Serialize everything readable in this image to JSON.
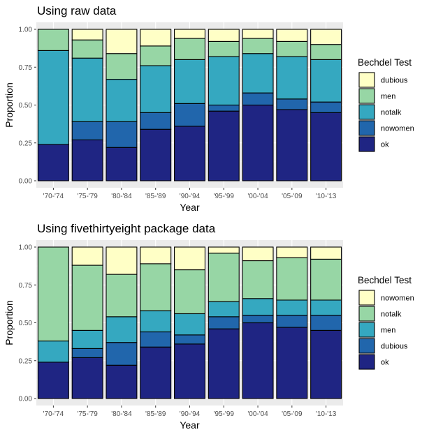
{
  "palette": {
    "panel_bg": "#ebebeb",
    "grid_major": "#ffffff",
    "grid_minor": "#f2f2f2",
    "bar_stroke": "#000000",
    "tick_text": "#4d4d4d",
    "text": "#000000"
  },
  "chart_data": [
    {
      "type": "bar",
      "stacked": true,
      "title": "Using raw data",
      "xlabel": "Year",
      "ylabel": "Proportion",
      "ylim": [
        0,
        1
      ],
      "yticks": [
        "0.00",
        "0.25",
        "0.50",
        "0.75",
        "1.00"
      ],
      "categories": [
        "'70-'74",
        "'75-'79",
        "'80-'84",
        "'85-'89",
        "'90-'94",
        "'95-'99",
        "'00-'04",
        "'05-'09",
        "'10-'13"
      ],
      "legend_title": "Bechdel Test",
      "legend_position": "right",
      "series": [
        {
          "name": "ok",
          "color": "#1f2583",
          "values": [
            0.24,
            0.27,
            0.22,
            0.34,
            0.36,
            0.46,
            0.5,
            0.47,
            0.45
          ]
        },
        {
          "name": "nowomen",
          "color": "#2166ac",
          "values": [
            0.0,
            0.12,
            0.17,
            0.11,
            0.15,
            0.04,
            0.08,
            0.07,
            0.07
          ]
        },
        {
          "name": "notalk",
          "color": "#35a8c0",
          "values": [
            0.62,
            0.42,
            0.28,
            0.31,
            0.29,
            0.32,
            0.26,
            0.28,
            0.28
          ]
        },
        {
          "name": "men",
          "color": "#97d6a5",
          "values": [
            0.14,
            0.12,
            0.17,
            0.13,
            0.14,
            0.1,
            0.1,
            0.1,
            0.1
          ]
        },
        {
          "name": "dubious",
          "color": "#ffffc6",
          "values": [
            0.0,
            0.07,
            0.16,
            0.11,
            0.06,
            0.08,
            0.06,
            0.08,
            0.1
          ]
        }
      ]
    },
    {
      "type": "bar",
      "stacked": true,
      "title": "Using fivethirtyeight package data",
      "xlabel": "Year",
      "ylabel": "Proportion",
      "ylim": [
        0,
        1
      ],
      "yticks": [
        "0.00",
        "0.25",
        "0.50",
        "0.75",
        "1.00"
      ],
      "categories": [
        "'70-'74",
        "'75-'79",
        "'80-'84",
        "'85-'89",
        "'90-'94",
        "'95-'99",
        "'00-'04",
        "'05-'09",
        "'10-'13"
      ],
      "legend_title": "Bechdel Test",
      "legend_position": "right",
      "series": [
        {
          "name": "ok",
          "color": "#1f2583",
          "values": [
            0.24,
            0.27,
            0.22,
            0.34,
            0.36,
            0.46,
            0.5,
            0.47,
            0.45
          ]
        },
        {
          "name": "dubious",
          "color": "#2166ac",
          "values": [
            0.0,
            0.06,
            0.15,
            0.1,
            0.06,
            0.08,
            0.05,
            0.08,
            0.1
          ]
        },
        {
          "name": "men",
          "color": "#35a8c0",
          "values": [
            0.14,
            0.12,
            0.17,
            0.14,
            0.14,
            0.1,
            0.11,
            0.1,
            0.1
          ]
        },
        {
          "name": "notalk",
          "color": "#97d6a5",
          "values": [
            0.62,
            0.43,
            0.28,
            0.31,
            0.29,
            0.32,
            0.25,
            0.28,
            0.27
          ]
        },
        {
          "name": "nowomen",
          "color": "#ffffc6",
          "values": [
            0.0,
            0.12,
            0.18,
            0.11,
            0.15,
            0.04,
            0.09,
            0.07,
            0.08
          ]
        }
      ]
    }
  ]
}
